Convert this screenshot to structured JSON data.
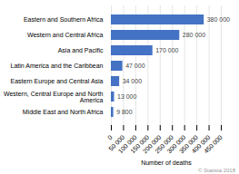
{
  "chart_data": {
    "type": "bar",
    "orientation": "horizontal",
    "categories": [
      "Middle East and North Africa",
      "Western, Central Europe and North\nAmerica",
      "Eastern Europe and Central Asia",
      "Latin America and the Caribbean",
      "Asia and Pacific",
      "Western and Central Africa",
      "Eastern and Southern Africa"
    ],
    "values": [
      9800,
      13000,
      34000,
      47000,
      170000,
      280000,
      380000
    ],
    "value_labels": [
      "9 800",
      "13 000",
      "34 000",
      "47 000",
      "170 000",
      "280 000",
      "380 000"
    ],
    "data_labels": true,
    "color": "#4472C4",
    "xlabel": "Number of deaths",
    "xlim": [
      0,
      450000
    ],
    "xticks": [
      0,
      {
        "value": 50000,
        "label": "50 000"
      },
      {
        "value": 100000,
        "label": "100 000"
      },
      {
        "value": 150000,
        "label": "150 000"
      },
      {
        "value": 200000,
        "label": "200 000"
      },
      {
        "value": 250000,
        "label": "250 000"
      },
      {
        "value": 300000,
        "label": "300 000"
      },
      {
        "value": 350000,
        "label": "350 000"
      },
      {
        "value": 400000,
        "label": "400 000"
      },
      {
        "value": 450000,
        "label": "450 000"
      }
    ],
    "grid": true,
    "annotations": [
      "© Statista 2018"
    ]
  }
}
